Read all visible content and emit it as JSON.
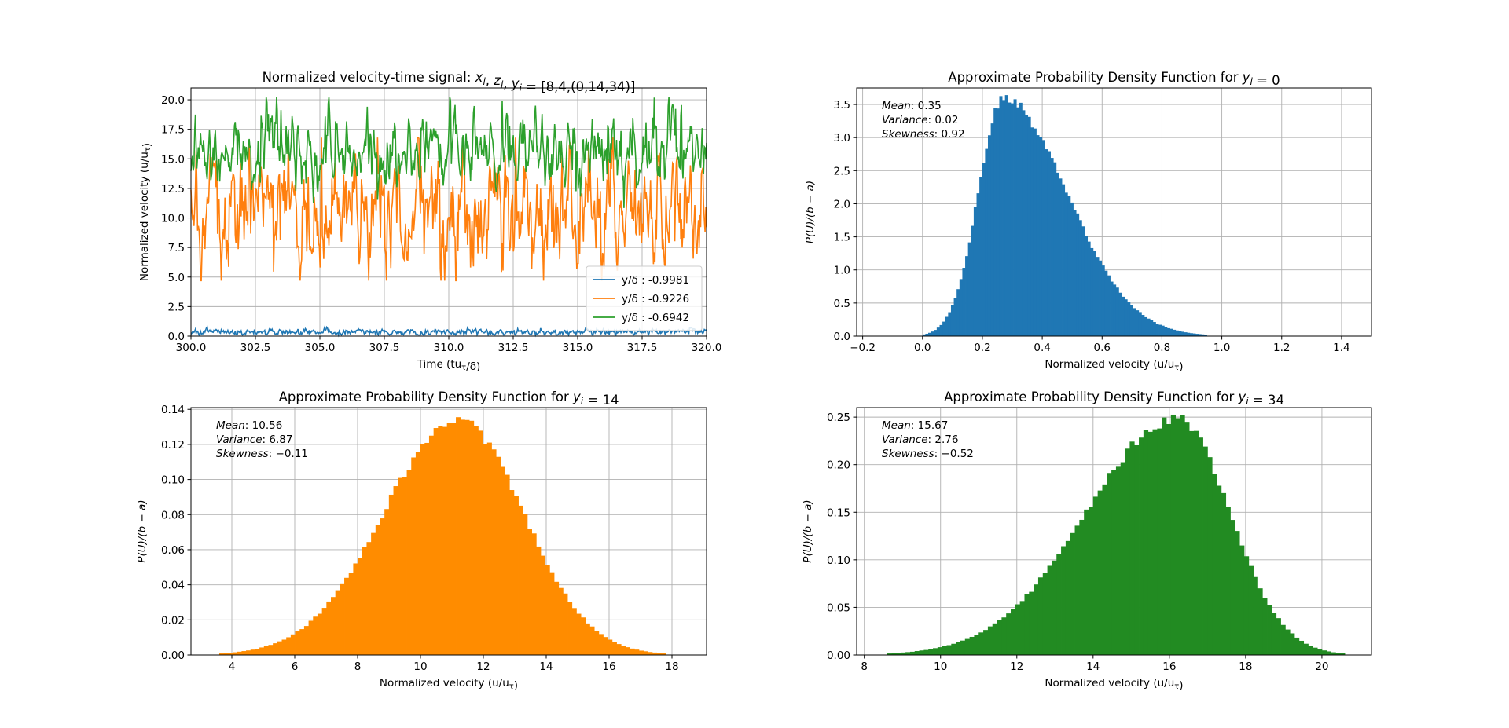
{
  "chart_data": [
    {
      "type": "line",
      "title": "Normalized velocity-time signal: x_i, z_i, y_i = [8,4,(0,14,34)]",
      "xlabel": "Time (tu_τ/δ)",
      "ylabel": "Normalized velocity (u/u_τ)",
      "xlim": [
        300.0,
        320.0
      ],
      "ylim": [
        0.0,
        21.0
      ],
      "xticks": [
        "300.0",
        "302.5",
        "305.0",
        "307.5",
        "310.0",
        "312.5",
        "315.0",
        "317.5",
        "320.0"
      ],
      "yticks": [
        "0.0",
        "2.5",
        "5.0",
        "7.5",
        "10.0",
        "12.5",
        "15.0",
        "17.5",
        "20.0"
      ],
      "grid": true,
      "legend_position": "lower-right",
      "series": [
        {
          "name": "y/δ : -0.9981",
          "color": "#1f77b4",
          "mean": 0.35,
          "std": 0.14,
          "min": 0.1,
          "max": 0.9
        },
        {
          "name": "y/δ : -0.9226",
          "color": "#ff7f0e",
          "mean": 10.56,
          "std": 2.62,
          "min": 4.7,
          "max": 16.8
        },
        {
          "name": "y/δ : -0.6942",
          "color": "#2ca02c",
          "mean": 15.67,
          "std": 1.66,
          "min": 10.5,
          "max": 20.2
        }
      ]
    },
    {
      "type": "bar",
      "title": "Approximate Probability Density Function for y_i = 0",
      "xlabel": "Normalized velocity (u/u_τ)",
      "ylabel": "P(U)/(b − a)",
      "xlim": [
        -0.22,
        1.5
      ],
      "ylim": [
        0.0,
        3.75
      ],
      "xticks": [
        "−0.2",
        "0.0",
        "0.2",
        "0.4",
        "0.6",
        "0.8",
        "1.0",
        "1.2",
        "1.4"
      ],
      "yticks": [
        "0.0",
        "0.5",
        "1.0",
        "1.5",
        "2.0",
        "2.5",
        "3.0",
        "3.5"
      ],
      "grid": true,
      "color": "#1f77b4",
      "distribution": {
        "mean": 0.35,
        "variance": 0.02,
        "skewness": 0.92,
        "x_min": 0.0,
        "x_max": 0.95,
        "peak_x": 0.27,
        "peak_density": 3.57
      },
      "annotations": [
        {
          "label": "Mean",
          "value": "0.35"
        },
        {
          "label": "Variance",
          "value": "0.02"
        },
        {
          "label": "Skewness",
          "value": "0.92"
        }
      ]
    },
    {
      "type": "bar",
      "title": "Approximate Probability Density Function for y_i = 14",
      "xlabel": "Normalized velocity (u/u_τ)",
      "ylabel": "P(U)/(b − a)",
      "xlim": [
        2.7,
        19.1
      ],
      "ylim": [
        0.0,
        0.141
      ],
      "xticks": [
        "4",
        "6",
        "8",
        "10",
        "12",
        "14",
        "16",
        "18"
      ],
      "yticks": [
        "0.00",
        "0.02",
        "0.04",
        "0.06",
        "0.08",
        "0.10",
        "0.12",
        "0.14"
      ],
      "grid": true,
      "color": "#ff8c00",
      "distribution": {
        "mean": 10.56,
        "variance": 6.87,
        "skewness": -0.11,
        "x_min": 3.6,
        "x_max": 17.8,
        "peak_x": 11.2,
        "peak_density": 0.134
      },
      "annotations": [
        {
          "label": "Mean",
          "value": "10.56"
        },
        {
          "label": "Variance",
          "value": "6.87"
        },
        {
          "label": "Skewness",
          "value": "−0.11"
        }
      ]
    },
    {
      "type": "bar",
      "title": "Approximate Probability Density Function for y_i = 34",
      "xlabel": "Normalized velocity (u/u_τ)",
      "ylabel": "P(U)/(b − a)",
      "xlim": [
        7.8,
        21.3
      ],
      "ylim": [
        0.0,
        0.26
      ],
      "xticks": [
        "8",
        "10",
        "12",
        "14",
        "16",
        "18",
        "20"
      ],
      "yticks": [
        "0.00",
        "0.05",
        "0.10",
        "0.15",
        "0.20",
        "0.25"
      ],
      "grid": true,
      "color": "#228b22",
      "distribution": {
        "mean": 15.67,
        "variance": 2.76,
        "skewness": -0.52,
        "x_min": 8.6,
        "x_max": 20.6,
        "peak_x": 16.2,
        "peak_density": 0.248
      },
      "annotations": [
        {
          "label": "Mean",
          "value": "15.67"
        },
        {
          "label": "Variance",
          "value": "2.76"
        },
        {
          "label": "Skewness",
          "value": "−0.52"
        }
      ]
    }
  ]
}
